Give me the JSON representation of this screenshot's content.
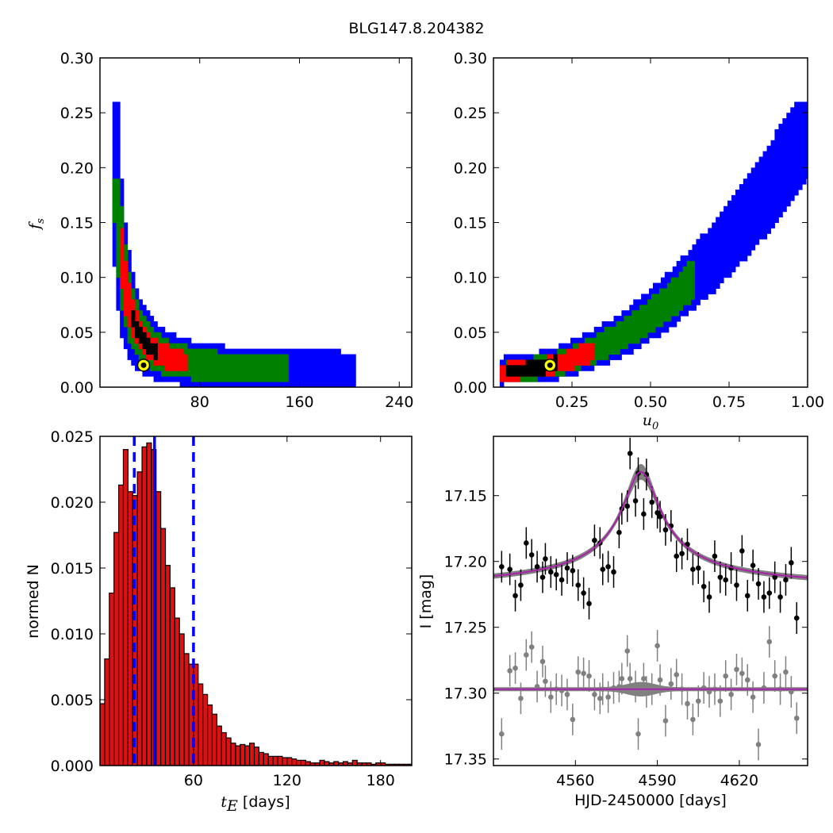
{
  "figure_title": "BLG147.8.204382",
  "colors": {
    "blue": "#0000ff",
    "green": "#008000",
    "red": "#ff0000",
    "black": "#000000",
    "marker": "#ffff00",
    "hist": "#dd1111",
    "gray": "#808080",
    "magenta": "#aa22aa"
  },
  "chart_data": [
    {
      "id": "top-left",
      "type": "heatmap",
      "xlabel": "",
      "ylabel": "f_s",
      "xlim": [
        0,
        250
      ],
      "ylim": [
        0,
        0.3
      ],
      "xticks": [
        "80",
        "160",
        "240"
      ],
      "yticks": [
        "0.00",
        "0.05",
        "0.10",
        "0.15",
        "0.20",
        "0.25",
        "0.30"
      ],
      "levels": [
        "blue",
        "green",
        "red",
        "black"
      ],
      "best_fit": {
        "x": 35,
        "y": 0.02
      }
    },
    {
      "id": "top-right",
      "type": "heatmap",
      "xlabel": "u_0",
      "ylabel": "",
      "xlim": [
        0,
        1.0
      ],
      "ylim": [
        0,
        0.3
      ],
      "xticks": [
        "0.25",
        "0.50",
        "0.75",
        "1.00"
      ],
      "yticks": [
        "0.00",
        "0.05",
        "0.10",
        "0.15",
        "0.20",
        "0.25",
        "0.30"
      ],
      "levels": [
        "blue",
        "green",
        "red",
        "black"
      ],
      "best_fit": {
        "x": 0.18,
        "y": 0.02
      }
    },
    {
      "id": "bottom-left",
      "type": "bar",
      "xlabel": "t_E [days]",
      "ylabel": "normed N",
      "xlim": [
        0,
        200
      ],
      "ylim": [
        0,
        0.025
      ],
      "xticks": [
        "60",
        "120",
        "180"
      ],
      "yticks": [
        "0.000",
        "0.005",
        "0.010",
        "0.015",
        "0.020",
        "0.025"
      ],
      "bin_start": 0,
      "bin_width": 3,
      "values": [
        0.0047,
        0.0081,
        0.0131,
        0.0177,
        0.0213,
        0.024,
        0.0208,
        0.0205,
        0.0223,
        0.0242,
        0.0245,
        0.024,
        0.0208,
        0.018,
        0.0152,
        0.0135,
        0.0112,
        0.01,
        0.0085,
        0.0077,
        0.0077,
        0.0062,
        0.0054,
        0.0046,
        0.0039,
        0.003,
        0.0025,
        0.0021,
        0.0017,
        0.0015,
        0.0016,
        0.0015,
        0.0017,
        0.0014,
        0.001,
        0.0009,
        0.0007,
        0.0007,
        0.0007,
        0.0006,
        0.0006,
        0.0005,
        0.0004,
        0.0004,
        0.0003,
        0.0002,
        0.0002,
        0.0004,
        0.0003,
        0.0002,
        0.0003,
        0.0002,
        0.0003,
        0.0002,
        0.0004,
        0.0002,
        0.0002,
        0.0002,
        0.0001,
        0.0002,
        0.0002,
        0.0001,
        0.0001,
        0.0001,
        0.0001,
        0.0001,
        0.0001
      ],
      "vlines": [
        {
          "x": 22,
          "style": "dashed",
          "color": "blue"
        },
        {
          "x": 35,
          "style": "solid",
          "color": "blue"
        },
        {
          "x": 60,
          "style": "dashed",
          "color": "blue"
        }
      ]
    },
    {
      "id": "bottom-right",
      "type": "scatter",
      "xlabel": "HJD-2450000 [days]",
      "ylabel": "I [mag]",
      "xlim": [
        4530,
        4645
      ],
      "ylim": [
        17.355,
        17.105
      ],
      "y_inverted": true,
      "xticks": [
        "4560",
        "4590",
        "4620"
      ],
      "yticks": [
        "17.15",
        "17.20",
        "17.25",
        "17.30",
        "17.35"
      ],
      "model": {
        "t0": 4584,
        "tE": 12,
        "baseline": 17.222,
        "peak": 17.132,
        "residual_baseline": 17.297
      },
      "series": [
        {
          "color": "black",
          "t": [
            4533,
            4536,
            4538,
            4540,
            4542,
            4544,
            4546,
            4548,
            4549,
            4551,
            4553,
            4555,
            4557,
            4559,
            4561,
            4563,
            4565,
            4567,
            4569,
            4570,
            4572,
            4574,
            4576,
            4577,
            4579,
            4580,
            4582,
            4583,
            4585,
            4586,
            4588,
            4590,
            4591,
            4593,
            4595,
            4597,
            4599,
            4601,
            4603,
            4605,
            4607,
            4609,
            4611,
            4613,
            4615,
            4617,
            4619,
            4621,
            4623,
            4625,
            4627,
            4629,
            4631,
            4633,
            4635,
            4637,
            4639,
            4641
          ],
          "mag": [
            17.204,
            17.206,
            17.226,
            17.218,
            17.186,
            17.195,
            17.204,
            17.212,
            17.198,
            17.208,
            17.21,
            17.214,
            17.205,
            17.207,
            17.218,
            17.224,
            17.232,
            17.184,
            17.186,
            17.206,
            17.204,
            17.208,
            17.178,
            17.16,
            17.158,
            17.118,
            17.154,
            17.133,
            17.164,
            17.134,
            17.155,
            17.163,
            17.166,
            17.176,
            17.173,
            17.196,
            17.194,
            17.187,
            17.206,
            17.205,
            17.219,
            17.227,
            17.196,
            17.212,
            17.214,
            17.205,
            17.218,
            17.192,
            17.226,
            17.203,
            17.217,
            17.227,
            17.224,
            17.212,
            17.227,
            17.214,
            17.201,
            17.243
          ],
          "err": 0.012
        },
        {
          "color": "gray",
          "t": [
            4533,
            4536,
            4538,
            4540,
            4542,
            4544,
            4546,
            4548,
            4549,
            4551,
            4553,
            4555,
            4557,
            4559,
            4561,
            4563,
            4565,
            4567,
            4569,
            4570,
            4572,
            4574,
            4576,
            4577,
            4579,
            4580,
            4582,
            4583,
            4585,
            4586,
            4588,
            4590,
            4591,
            4593,
            4595,
            4597,
            4599,
            4601,
            4603,
            4605,
            4607,
            4609,
            4611,
            4613,
            4615,
            4617,
            4619,
            4621,
            4623,
            4625,
            4627,
            4629,
            4631,
            4633,
            4635,
            4637,
            4639,
            4641
          ],
          "mag": [
            17.331,
            17.283,
            17.281,
            17.304,
            17.271,
            17.265,
            17.295,
            17.276,
            17.291,
            17.303,
            17.297,
            17.298,
            17.301,
            17.32,
            17.284,
            17.285,
            17.287,
            17.301,
            17.304,
            17.297,
            17.303,
            17.296,
            17.295,
            17.289,
            17.268,
            17.289,
            17.295,
            17.331,
            17.289,
            17.299,
            17.297,
            17.264,
            17.29,
            17.321,
            17.293,
            17.286,
            17.297,
            17.308,
            17.32,
            17.306,
            17.296,
            17.299,
            17.297,
            17.306,
            17.287,
            17.301,
            17.282,
            17.285,
            17.29,
            17.303,
            17.339,
            17.296,
            17.261,
            17.287,
            17.297,
            17.284,
            17.299,
            17.319
          ],
          "err": 0.012
        }
      ]
    }
  ]
}
